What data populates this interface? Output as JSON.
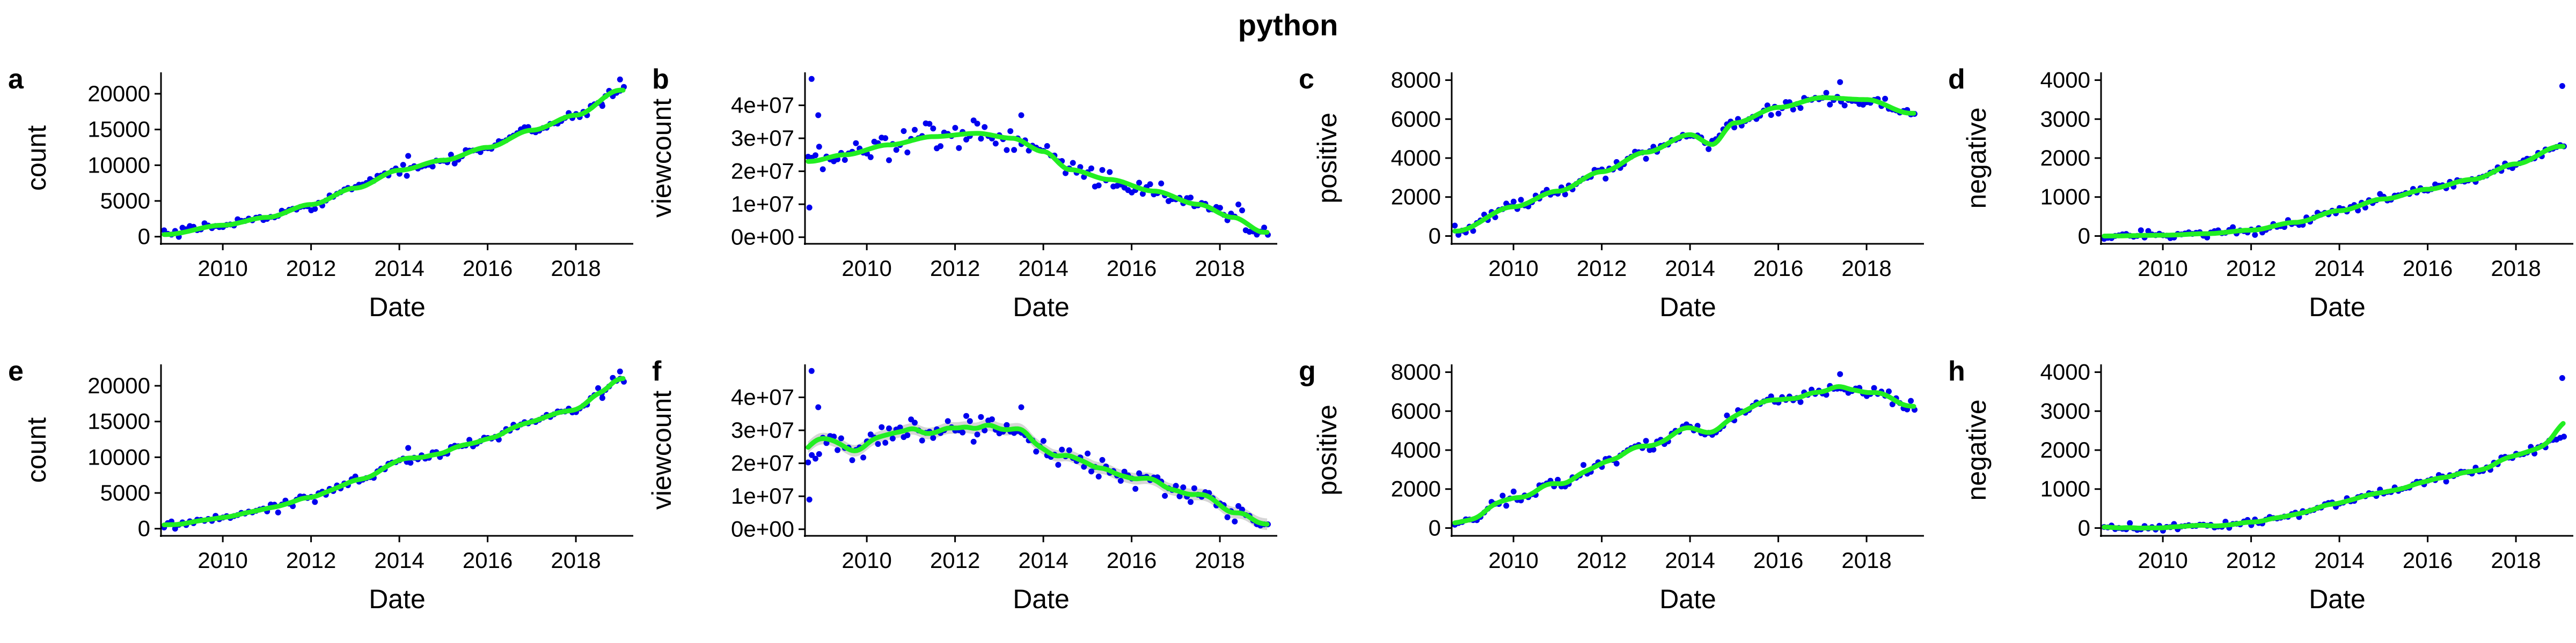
{
  "title": "python",
  "chart_data": [
    {
      "panel": "a",
      "type": "scatter",
      "xlabel": "Date",
      "ylabel": "count",
      "xlim": [
        2008.6,
        2019.3
      ],
      "ylim": [
        -1000,
        23000
      ],
      "yticks": [
        0,
        5000,
        10000,
        15000,
        20000
      ],
      "ytick_labels": [
        "0",
        "5000",
        "10000",
        "15000",
        "20000"
      ],
      "xticks": [
        2010,
        2012,
        2014,
        2016,
        2018
      ],
      "xtick_labels": [
        "2010",
        "2012",
        "2014",
        "2016",
        "2018"
      ],
      "point_color": "#0000ee",
      "smooth_color": "#22ee22",
      "smooth": "loess",
      "ribbon": false,
      "anchors": [
        [
          2008.7,
          300
        ],
        [
          2010,
          1600
        ],
        [
          2011,
          2700
        ],
        [
          2012,
          4500
        ],
        [
          2013,
          6800
        ],
        [
          2014,
          9300
        ],
        [
          2015,
          10700
        ],
        [
          2016,
          12500
        ],
        [
          2017,
          14900
        ],
        [
          2018,
          17000
        ],
        [
          2019,
          20500
        ]
      ],
      "noise": 550,
      "outliers": [
        [
          2014.2,
          11300
        ],
        [
          2018.6,
          18300
        ],
        [
          2019.0,
          22000
        ]
      ]
    },
    {
      "panel": "b",
      "type": "scatter",
      "xlabel": "Date",
      "ylabel": "viewcount",
      "xlim": [
        2008.6,
        2019.3
      ],
      "ylim": [
        -2000000,
        50000000
      ],
      "yticks": [
        0,
        10000000,
        20000000,
        30000000,
        40000000
      ],
      "ytick_labels": [
        "0e+00",
        "1e+07",
        "2e+07",
        "3e+07",
        "4e+07"
      ],
      "xticks": [
        2010,
        2012,
        2014,
        2016,
        2018
      ],
      "xtick_labels": [
        "2010",
        "2012",
        "2014",
        "2016",
        "2018"
      ],
      "point_color": "#0000ee",
      "smooth_color": "#22ee22",
      "smooth": "loess",
      "ribbon": false,
      "anchors": [
        [
          2008.7,
          23000000
        ],
        [
          2009.5,
          25000000
        ],
        [
          2010.5,
          28000000
        ],
        [
          2011.5,
          30500000
        ],
        [
          2012.5,
          31500000
        ],
        [
          2013.3,
          30000000
        ],
        [
          2014,
          26000000
        ],
        [
          2014.6,
          20500000
        ],
        [
          2015.5,
          17500000
        ],
        [
          2016.5,
          14000000
        ],
        [
          2017.5,
          10000000
        ],
        [
          2018.3,
          6000000
        ],
        [
          2019,
          1500000
        ]
      ],
      "noise": 3200000,
      "outliers": [
        [
          2008.75,
          48000000
        ],
        [
          2008.7,
          9000000
        ],
        [
          2008.9,
          37000000
        ],
        [
          2013.5,
          37000000
        ]
      ]
    },
    {
      "panel": "c",
      "type": "scatter",
      "xlabel": "Date",
      "ylabel": "positive",
      "xlim": [
        2008.6,
        2019.3
      ],
      "ylim": [
        -400,
        8400
      ],
      "yticks": [
        0,
        2000,
        4000,
        6000,
        8000
      ],
      "ytick_labels": [
        "0",
        "2000",
        "4000",
        "6000",
        "8000"
      ],
      "xticks": [
        2010,
        2012,
        2014,
        2016,
        2018
      ],
      "xtick_labels": [
        "2010",
        "2012",
        "2014",
        "2016",
        "2018"
      ],
      "point_color": "#0000ee",
      "smooth_color": "#22ee22",
      "smooth": "loess",
      "ribbon": false,
      "anchors": [
        [
          2008.7,
          250
        ],
        [
          2010,
          1500
        ],
        [
          2011,
          2300
        ],
        [
          2012,
          3300
        ],
        [
          2013,
          4300
        ],
        [
          2014,
          5200
        ],
        [
          2014.5,
          4700
        ],
        [
          2015,
          5800
        ],
        [
          2016,
          6600
        ],
        [
          2017,
          7100
        ],
        [
          2018,
          7000
        ],
        [
          2019,
          6300
        ]
      ],
      "noise": 280,
      "outliers": [
        [
          2017.4,
          7900
        ]
      ]
    },
    {
      "panel": "d",
      "type": "scatter",
      "xlabel": "Date",
      "ylabel": "negative",
      "xlim": [
        2008.6,
        2019.3
      ],
      "ylim": [
        -200,
        4200
      ],
      "yticks": [
        0,
        1000,
        2000,
        3000,
        4000
      ],
      "ytick_labels": [
        "0",
        "1000",
        "2000",
        "3000",
        "4000"
      ],
      "xticks": [
        2010,
        2012,
        2014,
        2016,
        2018
      ],
      "xtick_labels": [
        "2010",
        "2012",
        "2014",
        "2016",
        "2018"
      ],
      "point_color": "#0000ee",
      "smooth_color": "#22ee22",
      "smooth": "loess",
      "ribbon": false,
      "anchors": [
        [
          2008.7,
          0
        ],
        [
          2010,
          20
        ],
        [
          2011,
          60
        ],
        [
          2012,
          150
        ],
        [
          2013,
          350
        ],
        [
          2014,
          650
        ],
        [
          2015,
          950
        ],
        [
          2016,
          1200
        ],
        [
          2017,
          1450
        ],
        [
          2018,
          1850
        ],
        [
          2019,
          2300
        ]
      ],
      "noise": 90,
      "outliers": [
        [
          2019.05,
          3850
        ]
      ]
    },
    {
      "panel": "e",
      "type": "scatter",
      "xlabel": "Date",
      "ylabel": "count",
      "xlim": [
        2008.6,
        2019.3
      ],
      "ylim": [
        -1000,
        23000
      ],
      "yticks": [
        0,
        5000,
        10000,
        15000,
        20000
      ],
      "ytick_labels": [
        "0",
        "5000",
        "10000",
        "15000",
        "20000"
      ],
      "xticks": [
        2010,
        2012,
        2014,
        2016,
        2018
      ],
      "xtick_labels": [
        "2010",
        "2012",
        "2014",
        "2016",
        "2018"
      ],
      "point_color": "#0000ee",
      "smooth_color": "#22ee22",
      "smooth": "gam",
      "ribbon": false,
      "anchors": [
        [
          2008.7,
          300
        ],
        [
          2010,
          1600
        ],
        [
          2011,
          2700
        ],
        [
          2012,
          4500
        ],
        [
          2013,
          6800
        ],
        [
          2014,
          9300
        ],
        [
          2015,
          10700
        ],
        [
          2016,
          12500
        ],
        [
          2017,
          14900
        ],
        [
          2018,
          17000
        ],
        [
          2019,
          20500
        ]
      ],
      "noise": 550,
      "outliers": [
        [
          2014.2,
          11300
        ],
        [
          2018.6,
          18300
        ],
        [
          2019.0,
          22000
        ]
      ]
    },
    {
      "panel": "f",
      "type": "scatter",
      "xlabel": "Date",
      "ylabel": "viewcount",
      "xlim": [
        2008.6,
        2019.3
      ],
      "ylim": [
        -2000000,
        50000000
      ],
      "yticks": [
        0,
        10000000,
        20000000,
        30000000,
        40000000
      ],
      "ytick_labels": [
        "0e+00",
        "1e+07",
        "2e+07",
        "3e+07",
        "4e+07"
      ],
      "xticks": [
        2010,
        2012,
        2014,
        2016,
        2018
      ],
      "xtick_labels": [
        "2010",
        "2012",
        "2014",
        "2016",
        "2018"
      ],
      "point_color": "#0000ee",
      "smooth_color": "#22ee22",
      "smooth": "gam",
      "ribbon": true,
      "anchors": [
        [
          2008.7,
          23000000
        ],
        [
          2009.5,
          25000000
        ],
        [
          2010.5,
          28000000
        ],
        [
          2011.5,
          30500000
        ],
        [
          2012.5,
          31500000
        ],
        [
          2013.3,
          30000000
        ],
        [
          2014,
          26000000
        ],
        [
          2014.6,
          20500000
        ],
        [
          2015.5,
          17500000
        ],
        [
          2016.5,
          14000000
        ],
        [
          2017.5,
          10000000
        ],
        [
          2018.3,
          6000000
        ],
        [
          2019,
          1500000
        ]
      ],
      "noise": 3200000,
      "outliers": [
        [
          2008.75,
          48000000
        ],
        [
          2008.7,
          9000000
        ],
        [
          2008.9,
          37000000
        ],
        [
          2013.5,
          37000000
        ]
      ]
    },
    {
      "panel": "g",
      "type": "scatter",
      "xlabel": "Date",
      "ylabel": "positive",
      "xlim": [
        2008.6,
        2019.3
      ],
      "ylim": [
        -400,
        8400
      ],
      "yticks": [
        0,
        2000,
        4000,
        6000,
        8000
      ],
      "ytick_labels": [
        "0",
        "2000",
        "4000",
        "6000",
        "8000"
      ],
      "xticks": [
        2010,
        2012,
        2014,
        2016,
        2018
      ],
      "xtick_labels": [
        "2010",
        "2012",
        "2014",
        "2016",
        "2018"
      ],
      "point_color": "#0000ee",
      "smooth_color": "#22ee22",
      "smooth": "gam",
      "ribbon": false,
      "anchors": [
        [
          2008.7,
          250
        ],
        [
          2010,
          1500
        ],
        [
          2011,
          2300
        ],
        [
          2012,
          3300
        ],
        [
          2013,
          4300
        ],
        [
          2014,
          5200
        ],
        [
          2014.5,
          4700
        ],
        [
          2015,
          5800
        ],
        [
          2016,
          6600
        ],
        [
          2017,
          7100
        ],
        [
          2018,
          7000
        ],
        [
          2019,
          6300
        ]
      ],
      "noise": 280,
      "outliers": [
        [
          2017.4,
          7900
        ]
      ]
    },
    {
      "panel": "h",
      "type": "scatter",
      "xlabel": "Date",
      "ylabel": "negative",
      "xlim": [
        2008.6,
        2019.3
      ],
      "ylim": [
        -200,
        4200
      ],
      "yticks": [
        0,
        1000,
        2000,
        3000,
        4000
      ],
      "ytick_labels": [
        "0",
        "1000",
        "2000",
        "3000",
        "4000"
      ],
      "xticks": [
        2010,
        2012,
        2014,
        2016,
        2018
      ],
      "xtick_labels": [
        "2010",
        "2012",
        "2014",
        "2016",
        "2018"
      ],
      "point_color": "#0000ee",
      "smooth_color": "#22ee22",
      "smooth": "gam",
      "ribbon": false,
      "anchors": [
        [
          2008.7,
          0
        ],
        [
          2010,
          20
        ],
        [
          2011,
          60
        ],
        [
          2012,
          150
        ],
        [
          2013,
          350
        ],
        [
          2014,
          650
        ],
        [
          2015,
          950
        ],
        [
          2016,
          1200
        ],
        [
          2017,
          1450
        ],
        [
          2018,
          1850
        ],
        [
          2019,
          2300
        ]
      ],
      "noise": 90,
      "outliers": [
        [
          2019.05,
          3850
        ]
      ]
    }
  ]
}
